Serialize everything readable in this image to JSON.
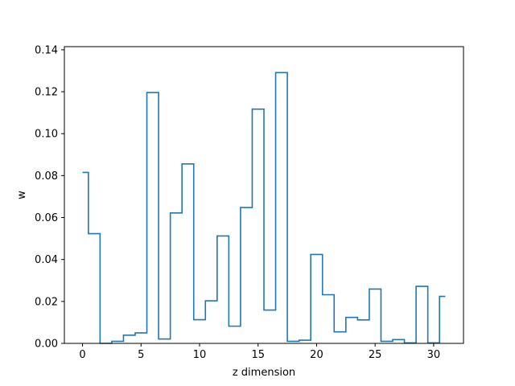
{
  "chart_data": {
    "type": "line",
    "drawstyle": "steps-mid",
    "title": "",
    "xlabel": "z dimension",
    "ylabel": "w",
    "xlim": [
      -1.55,
      32.55
    ],
    "ylim": [
      0.0,
      0.1415
    ],
    "xticks": [
      0,
      5,
      10,
      15,
      20,
      25,
      30
    ],
    "yticks": [
      0.0,
      0.02,
      0.04,
      0.06,
      0.08,
      0.1,
      0.12,
      0.14
    ],
    "ytick_labels": [
      "0.00",
      "0.02",
      "0.04",
      "0.06",
      "0.08",
      "0.10",
      "0.12",
      "0.14"
    ],
    "grid": false,
    "color": "#1f77b4",
    "series": [
      {
        "x": [
          0,
          1,
          2,
          3,
          4,
          5,
          6,
          7,
          8,
          9,
          10,
          11,
          12,
          13,
          14,
          15,
          16,
          17,
          18,
          19,
          20,
          21,
          22,
          23,
          24,
          25,
          26,
          27,
          28,
          29,
          30,
          31
        ],
        "values": [
          0.0815,
          0.0523,
          0.0,
          0.001,
          0.0039,
          0.005,
          0.1196,
          0.0021,
          0.0622,
          0.0856,
          0.0113,
          0.0203,
          0.0512,
          0.0082,
          0.0648,
          0.1117,
          0.0159,
          0.1291,
          0.001,
          0.0015,
          0.0424,
          0.0232,
          0.0055,
          0.0124,
          0.0112,
          0.0259,
          0.001,
          0.0018,
          0.0002,
          0.0272,
          0.0002,
          0.0224
        ]
      }
    ]
  }
}
